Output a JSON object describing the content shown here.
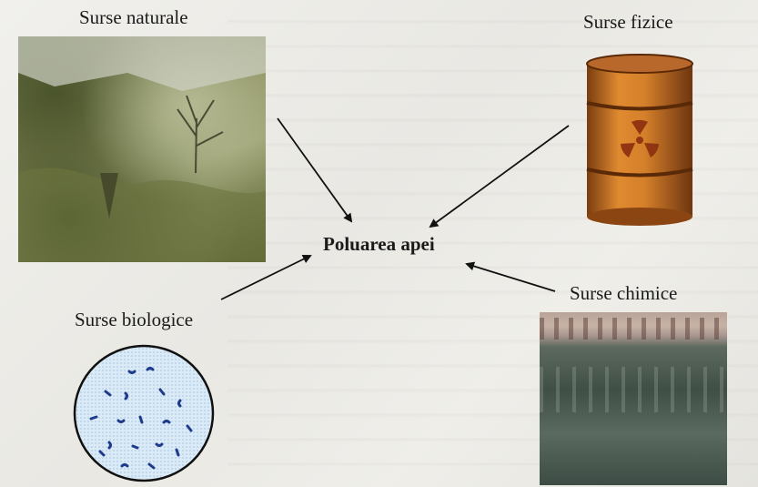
{
  "labels": {
    "natural": "Surse naturale",
    "physical": "Surse fizice",
    "center": "Poluarea apei",
    "chemical": "Surse chimice",
    "biological": "Surse biologice"
  },
  "colors": {
    "barrel_orange": "#c9701d",
    "barrel_dark": "#7a3d10",
    "microbe_blue": "#1e3a8a",
    "dish_blue": "#dbeaf7"
  }
}
